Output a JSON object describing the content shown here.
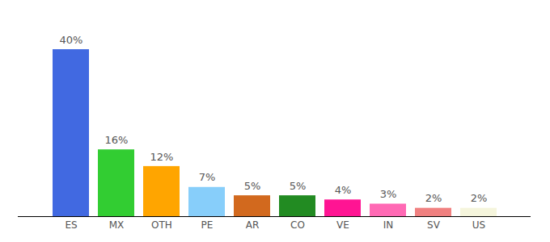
{
  "chart_data": {
    "type": "bar",
    "categories": [
      "ES",
      "MX",
      "OTH",
      "PE",
      "AR",
      "CO",
      "VE",
      "IN",
      "SV",
      "US"
    ],
    "values": [
      40,
      16,
      12,
      7,
      5,
      5,
      4,
      3,
      2,
      2
    ],
    "value_labels": [
      "40%",
      "16%",
      "12%",
      "7%",
      "5%",
      "5%",
      "4%",
      "3%",
      "2%",
      "2%"
    ],
    "colors": [
      "#4169e1",
      "#32cd32",
      "#ffa500",
      "#87cefa",
      "#d2691e",
      "#228b22",
      "#ff1493",
      "#ff69b4",
      "#f08080",
      "#f5f5dc"
    ],
    "ylim": [
      0,
      40
    ],
    "data_labels": true,
    "tick_labels": "x"
  }
}
